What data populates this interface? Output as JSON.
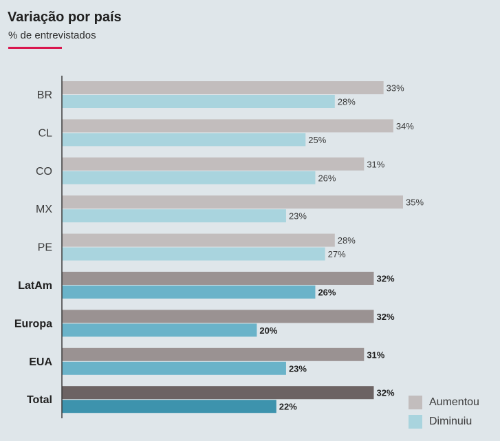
{
  "title": "Variação por país",
  "subtitle": "% de entrevistados",
  "colors": {
    "accent": "#d9164e",
    "aumentou_light": "#c2bdbd",
    "diminuiu_light": "#a9d4de",
    "aumentou_mid": "#9a9292",
    "diminuiu_mid": "#6ab3c9",
    "aumentou_dark": "#6c6363",
    "diminuiu_dark": "#3d93ad"
  },
  "legend": [
    {
      "label": "Aumentou",
      "color": "#c2bdbd"
    },
    {
      "label": "Diminuiu",
      "color": "#a9d4de"
    }
  ],
  "chart_data": {
    "type": "bar",
    "orientation": "horizontal",
    "categories": [
      "BR",
      "CL",
      "CO",
      "MX",
      "PE",
      "LatAm",
      "Europa",
      "EUA",
      "Total"
    ],
    "bold_categories": [
      "LatAm",
      "Europa",
      "EUA",
      "Total"
    ],
    "series": [
      {
        "name": "Aumentou",
        "values": [
          33,
          34,
          31,
          35,
          28,
          32,
          32,
          31,
          32
        ]
      },
      {
        "name": "Diminuiu",
        "values": [
          28,
          25,
          26,
          23,
          27,
          26,
          20,
          23,
          22
        ]
      }
    ],
    "value_suffix": "%",
    "xlim": [
      0,
      35
    ],
    "grid": false,
    "legend_position": "bottom-right"
  }
}
